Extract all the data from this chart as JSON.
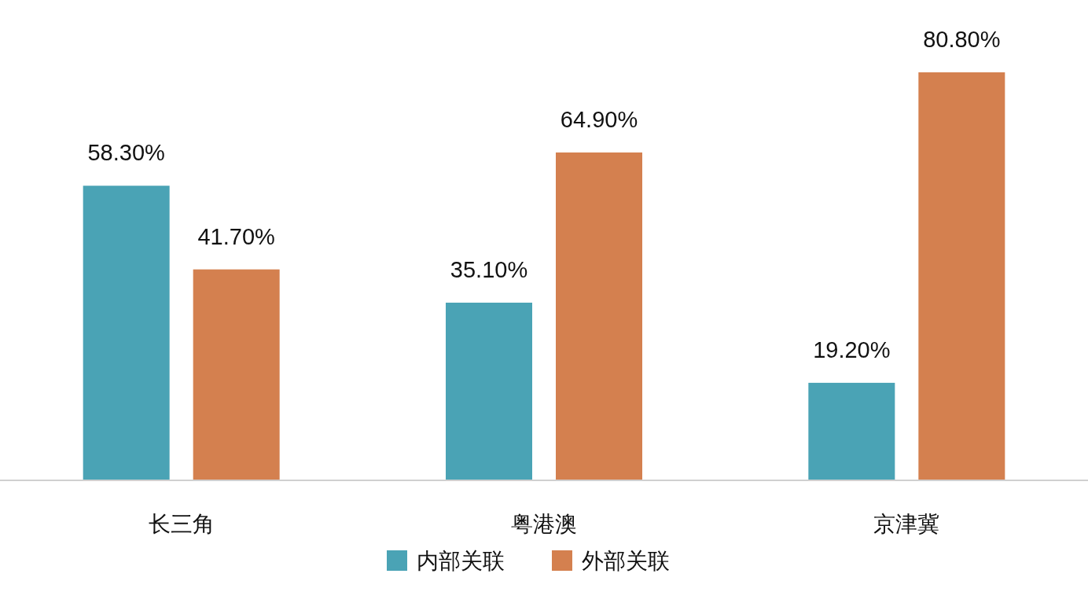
{
  "chart_data": {
    "type": "bar",
    "categories": [
      "长三角",
      "粤港澳",
      "京津冀"
    ],
    "series": [
      {
        "name": "内部关联",
        "color": "#4aa3b5",
        "values": [
          58.3,
          35.1,
          19.2
        ],
        "value_labels": [
          "58.30%",
          "35.10%",
          "19.20%"
        ]
      },
      {
        "name": "外部关联",
        "color": "#d4804f",
        "values": [
          41.7,
          64.9,
          80.8
        ],
        "value_labels": [
          "41.70%",
          "64.90%",
          "80.80%"
        ]
      }
    ],
    "legend": "bottom"
  }
}
